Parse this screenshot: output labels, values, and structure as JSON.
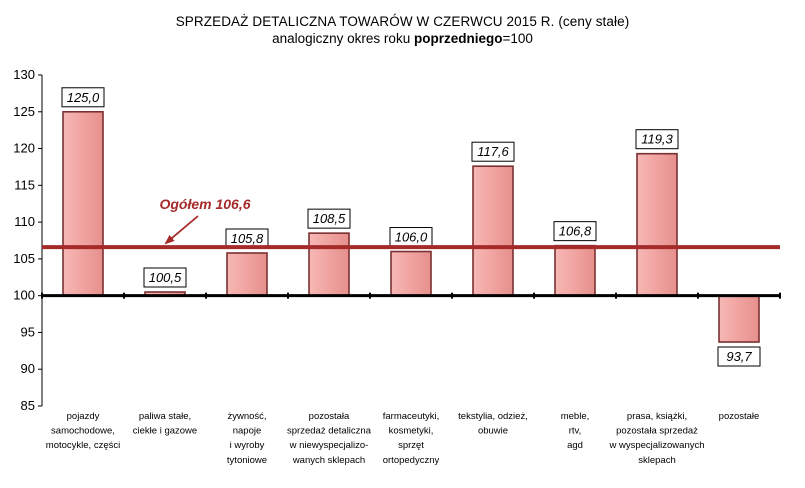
{
  "chart_data": {
    "type": "bar",
    "title": "SPRZEDAŻ DETALICZNA TOWARÓW W CZERWCU  2015 R. (ceny stałe)",
    "subtitle_pre": "analogiczny okres roku ",
    "subtitle_bold": "poprzedniego",
    "subtitle_post": "=100",
    "baseline": 100,
    "ylim": [
      85,
      130
    ],
    "yticks": [
      85,
      90,
      95,
      100,
      105,
      110,
      115,
      120,
      125,
      130
    ],
    "grid": false,
    "categories": [
      [
        "pojazdy",
        "samochodowe,",
        "motocykle, części"
      ],
      [
        "paliwa stałe,",
        "ciekłe i gazowe"
      ],
      [
        "żywność,",
        "napoje",
        "i wyroby",
        "tytoniowe"
      ],
      [
        "pozostała",
        "sprzedaż detaliczna",
        "w niewyspecjalizo-",
        "wanych sklepach"
      ],
      [
        "farmaceutyki,",
        "kosmetyki,",
        "sprzęt",
        "ortopedyczny"
      ],
      [
        "tekstylia, odzież,",
        "obuwie"
      ],
      [
        "meble,",
        "rtv,",
        "agd"
      ],
      [
        "prasa, książki,",
        "pozostała sprzedaż",
        "w wyspecjalizowanych",
        "sklepach"
      ],
      [
        "pozostałe"
      ]
    ],
    "values": [
      125.0,
      100.5,
      105.8,
      108.5,
      106.0,
      117.6,
      106.8,
      119.3,
      93.7
    ],
    "value_labels": [
      "125,0",
      "100,5",
      "105,8",
      "108,5",
      "106,0",
      "117,6",
      "106,8",
      "119,3",
      "93,7"
    ],
    "total_line": {
      "value": 106.6,
      "label": "Ogółem 106,6"
    },
    "colors": {
      "bar_fill": "#f0a3a0",
      "bar_stroke": "#7a3030",
      "total_line": "#a52a2a",
      "axis": "#000000"
    }
  }
}
